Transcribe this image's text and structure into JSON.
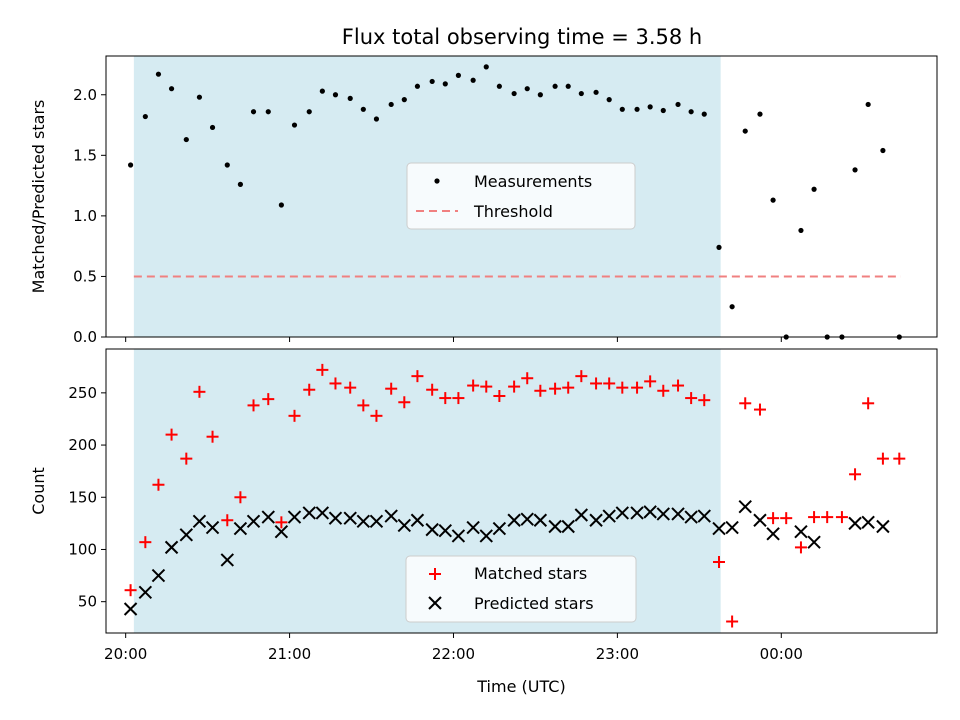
{
  "title": "Flux total observing time = 3.58 h",
  "chart_data": [
    {
      "type": "scatter",
      "ylabel": "Matched/Predicted stars",
      "xlim": [
        19.88,
        24.95
      ],
      "ylim": [
        0,
        2.32
      ],
      "yticks": [
        "0.0",
        "0.5",
        "1.0",
        "1.5",
        "2.0"
      ],
      "ytick_values": [
        0,
        0.5,
        1.0,
        1.5,
        2.0
      ],
      "shaded_span": [
        20.05,
        23.63
      ],
      "threshold": {
        "name": "Threshold",
        "value": 0.5,
        "x_range": [
          20.05,
          24.73
        ],
        "color": "#f08080"
      },
      "legend": {
        "placement": "center",
        "entries": [
          "Measurements",
          "Threshold"
        ]
      },
      "series": [
        {
          "name": "Measurements",
          "color": "#000000",
          "x": [
            20.03,
            20.12,
            20.2,
            20.28,
            20.37,
            20.45,
            20.53,
            20.62,
            20.7,
            20.78,
            20.87,
            20.95,
            21.03,
            21.12,
            21.2,
            21.28,
            21.37,
            21.45,
            21.53,
            21.62,
            21.7,
            21.78,
            21.87,
            21.95,
            22.03,
            22.12,
            22.2,
            22.28,
            22.37,
            22.45,
            22.53,
            22.62,
            22.7,
            22.78,
            22.87,
            22.95,
            23.03,
            23.12,
            23.2,
            23.28,
            23.37,
            23.45,
            23.53,
            23.62,
            23.7,
            23.78,
            23.87,
            23.95,
            24.03,
            24.12,
            24.2,
            24.28,
            24.37,
            24.45,
            24.53,
            24.62,
            24.72
          ],
          "y": [
            1.42,
            1.82,
            2.17,
            2.05,
            1.63,
            1.98,
            1.73,
            1.42,
            1.26,
            1.86,
            1.86,
            1.09,
            1.75,
            1.86,
            2.03,
            2.0,
            1.97,
            1.88,
            1.8,
            1.92,
            1.96,
            2.07,
            2.11,
            2.09,
            2.16,
            2.12,
            2.23,
            2.07,
            2.01,
            2.05,
            2.0,
            2.07,
            2.07,
            2.01,
            2.02,
            1.96,
            1.88,
            1.88,
            1.9,
            1.87,
            1.92,
            1.86,
            1.84,
            0.74,
            0.25,
            1.7,
            1.84,
            1.13,
            0.0,
            0.88,
            1.22,
            0.0,
            0.0,
            1.38,
            1.92,
            1.54,
            0.0
          ]
        }
      ]
    },
    {
      "type": "scatter",
      "xlabel": "Time (UTC)",
      "ylabel": "Count",
      "xlim": [
        19.88,
        24.95
      ],
      "ylim": [
        20,
        292
      ],
      "yticks": [
        "50",
        "100",
        "150",
        "200",
        "250"
      ],
      "ytick_values": [
        50,
        100,
        150,
        200,
        250
      ],
      "xticks": [
        "20:00",
        "21:00",
        "22:00",
        "23:00",
        "00:00"
      ],
      "xtick_values": [
        20,
        21,
        22,
        23,
        24
      ],
      "shaded_span": [
        20.05,
        23.63
      ],
      "legend": {
        "placement": "lower center",
        "entries": [
          "Matched stars",
          "Predicted stars"
        ]
      },
      "series": [
        {
          "name": "Matched stars",
          "color": "#ff0000",
          "x": [
            20.03,
            20.12,
            20.2,
            20.28,
            20.37,
            20.45,
            20.53,
            20.62,
            20.7,
            20.78,
            20.87,
            20.95,
            21.03,
            21.12,
            21.2,
            21.28,
            21.37,
            21.45,
            21.53,
            21.62,
            21.7,
            21.78,
            21.87,
            21.95,
            22.03,
            22.12,
            22.2,
            22.28,
            22.37,
            22.45,
            22.53,
            22.62,
            22.7,
            22.78,
            22.87,
            22.95,
            23.03,
            23.12,
            23.2,
            23.28,
            23.37,
            23.45,
            23.53,
            23.62,
            23.7,
            23.78,
            23.87,
            23.95,
            24.03,
            24.12,
            24.2,
            24.28,
            24.37,
            24.45,
            24.53,
            24.62,
            24.72
          ],
          "y": [
            61,
            107,
            162,
            210,
            187,
            251,
            208,
            128,
            150,
            238,
            244,
            126,
            228,
            253,
            272,
            259,
            255,
            238,
            228,
            254,
            241,
            266,
            253,
            245,
            245,
            257,
            256,
            247,
            256,
            264,
            252,
            254,
            255,
            266,
            259,
            259,
            255,
            255,
            261,
            252,
            257,
            245,
            243,
            88,
            31,
            240,
            234,
            130,
            130,
            102,
            131,
            131,
            131,
            172,
            240,
            187,
            187
          ]
        },
        {
          "name": "Predicted stars",
          "color": "#000000",
          "x": [
            20.03,
            20.12,
            20.2,
            20.28,
            20.37,
            20.45,
            20.53,
            20.62,
            20.7,
            20.78,
            20.87,
            20.95,
            21.03,
            21.12,
            21.2,
            21.28,
            21.37,
            21.45,
            21.53,
            21.62,
            21.7,
            21.78,
            21.87,
            21.95,
            22.03,
            22.12,
            22.2,
            22.28,
            22.37,
            22.45,
            22.53,
            22.62,
            22.7,
            22.78,
            22.87,
            22.95,
            23.03,
            23.12,
            23.2,
            23.28,
            23.37,
            23.45,
            23.53,
            23.62,
            23.7,
            23.78,
            23.87,
            23.95,
            24.12,
            24.2,
            24.45,
            24.53,
            24.62
          ],
          "y": [
            43,
            59,
            75,
            102,
            114,
            127,
            121,
            90,
            120,
            127,
            131,
            117,
            131,
            135,
            135,
            130,
            130,
            127,
            127,
            132,
            123,
            128,
            119,
            118,
            113,
            121,
            113,
            120,
            128,
            129,
            128,
            122,
            122,
            133,
            128,
            132,
            135,
            135,
            136,
            134,
            134,
            131,
            132,
            120,
            121,
            141,
            128,
            115,
            117,
            107,
            125,
            126,
            122
          ]
        }
      ]
    }
  ]
}
